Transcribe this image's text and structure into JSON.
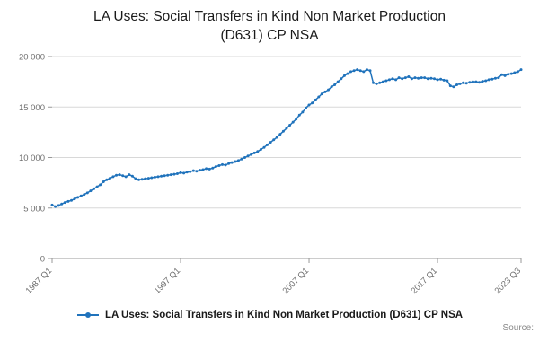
{
  "title_line1": "LA Uses: Social Transfers in Kind Non Market Production",
  "title_line2": "(D631) CP NSA",
  "source_label": "Source:",
  "legend": {
    "label": "LA Uses: Social Transfers in Kind Non Market Production (D631) CP NSA"
  },
  "chart_data": {
    "type": "line",
    "title": "LA Uses: Social Transfers in Kind Non Market Production (D631) CP NSA",
    "x_start": "1987 Q1",
    "x_end": "2023 Q3",
    "frequency": "quarterly",
    "x_tick_labels": [
      "1987 Q1",
      "1997 Q1",
      "2007 Q1",
      "2017 Q1",
      "2023 Q3"
    ],
    "x_tick_indices": [
      0,
      40,
      80,
      120,
      146
    ],
    "y_ticks": [
      0,
      5000,
      10000,
      15000,
      20000
    ],
    "y_tick_labels": [
      "0",
      "5 000",
      "10 000",
      "15 000",
      "20 000"
    ],
    "ylim": [
      0,
      20000
    ],
    "grid": "horizontal",
    "legend_position": "bottom",
    "line_color": "#2073bc",
    "axis_text_color": "#6e6e6e",
    "grid_color": "#d8d8d8",
    "axis_line_color": "#999999",
    "series": [
      {
        "name": "LA Uses: Social Transfers in Kind Non Market Production (D631) CP NSA",
        "values": [
          5300,
          5150,
          5250,
          5400,
          5550,
          5650,
          5750,
          5900,
          6050,
          6200,
          6350,
          6500,
          6700,
          6900,
          7100,
          7300,
          7600,
          7800,
          7950,
          8100,
          8250,
          8300,
          8200,
          8100,
          8300,
          8150,
          7900,
          7800,
          7850,
          7900,
          7950,
          8000,
          8050,
          8100,
          8150,
          8200,
          8250,
          8300,
          8350,
          8400,
          8500,
          8450,
          8550,
          8600,
          8700,
          8650,
          8750,
          8800,
          8900,
          8850,
          8950,
          9100,
          9200,
          9300,
          9250,
          9400,
          9500,
          9600,
          9700,
          9850,
          10000,
          10150,
          10300,
          10450,
          10600,
          10800,
          11000,
          11250,
          11500,
          11750,
          12000,
          12300,
          12600,
          12900,
          13200,
          13500,
          13800,
          14200,
          14500,
          14900,
          15200,
          15400,
          15700,
          16000,
          16300,
          16500,
          16700,
          17000,
          17200,
          17500,
          17800,
          18100,
          18300,
          18500,
          18600,
          18700,
          18600,
          18500,
          18700,
          18600,
          17400,
          17300,
          17400,
          17500,
          17600,
          17700,
          17800,
          17700,
          17900,
          17800,
          17900,
          18000,
          17800,
          17900,
          17850,
          17900,
          17900,
          17800,
          17850,
          17800,
          17700,
          17750,
          17650,
          17600,
          17100,
          17000,
          17200,
          17300,
          17400,
          17350,
          17450,
          17500,
          17500,
          17450,
          17550,
          17600,
          17700,
          17750,
          17850,
          17900,
          18200,
          18100,
          18250,
          18300,
          18400,
          18500,
          18700
        ]
      }
    ]
  }
}
